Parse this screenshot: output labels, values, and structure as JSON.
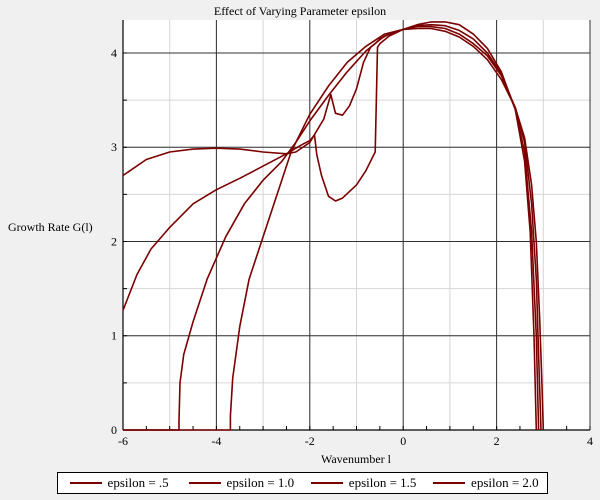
{
  "chart_data": {
    "type": "line",
    "title": "Effect of Varying Parameter epsilon",
    "xlabel": "Wavenumber l",
    "ylabel": "Growth Rate G(l)",
    "xlim": [
      -6,
      4
    ],
    "ylim": [
      0,
      4.35
    ],
    "xticks": [
      "-6",
      "-4",
      "-2",
      "0",
      "2",
      "4"
    ],
    "yticks": [
      "0",
      "1",
      "2",
      "3",
      "4"
    ],
    "grid": true,
    "legend_position": "bottom",
    "line_color": "#7b0000",
    "series": [
      {
        "name": "epsilon = .5",
        "points": [
          [
            -6,
            2.7
          ],
          [
            -5.5,
            2.87
          ],
          [
            -5,
            2.95
          ],
          [
            -4.5,
            2.98
          ],
          [
            -4,
            2.99
          ],
          [
            -3.5,
            2.98
          ],
          [
            -3,
            2.95
          ],
          [
            -2.5,
            2.93
          ],
          [
            -2.3,
            2.95
          ],
          [
            -2.0,
            3.05
          ],
          [
            -1.7,
            3.3
          ],
          [
            -1.55,
            3.56
          ],
          [
            -1.45,
            3.36
          ],
          [
            -1.3,
            3.34
          ],
          [
            -1.15,
            3.44
          ],
          [
            -1.0,
            3.62
          ],
          [
            -0.85,
            3.9
          ],
          [
            -0.7,
            4.06
          ],
          [
            -0.6,
            4.1
          ],
          [
            -0.5,
            4.15
          ],
          [
            -0.3,
            4.2
          ],
          [
            0,
            4.25
          ],
          [
            0.3,
            4.3
          ],
          [
            0.6,
            4.33
          ],
          [
            0.9,
            4.33
          ],
          [
            1.2,
            4.3
          ],
          [
            1.5,
            4.2
          ],
          [
            1.8,
            4.05
          ],
          [
            2.1,
            3.8
          ],
          [
            2.4,
            3.4
          ],
          [
            2.6,
            2.85
          ],
          [
            2.72,
            2.1
          ],
          [
            2.8,
            1.0
          ],
          [
            2.85,
            0
          ]
        ]
      },
      {
        "name": "epsilon = 1.0",
        "points": [
          [
            -6,
            1.27
          ],
          [
            -5.7,
            1.65
          ],
          [
            -5.4,
            1.92
          ],
          [
            -5.0,
            2.15
          ],
          [
            -4.5,
            2.4
          ],
          [
            -4.0,
            2.55
          ],
          [
            -3.5,
            2.67
          ],
          [
            -3.0,
            2.8
          ],
          [
            -2.5,
            2.93
          ],
          [
            -2.2,
            3.02
          ],
          [
            -2.0,
            3.07
          ],
          [
            -1.9,
            3.13
          ],
          [
            -1.85,
            2.92
          ],
          [
            -1.75,
            2.7
          ],
          [
            -1.6,
            2.48
          ],
          [
            -1.45,
            2.43
          ],
          [
            -1.3,
            2.46
          ],
          [
            -1.0,
            2.6
          ],
          [
            -0.8,
            2.75
          ],
          [
            -0.6,
            2.95
          ],
          [
            -0.55,
            4.06
          ],
          [
            -0.5,
            4.1
          ],
          [
            -0.3,
            4.18
          ],
          [
            0,
            4.25
          ],
          [
            0.3,
            4.29
          ],
          [
            0.6,
            4.3
          ],
          [
            0.9,
            4.29
          ],
          [
            1.2,
            4.24
          ],
          [
            1.5,
            4.15
          ],
          [
            1.8,
            4.0
          ],
          [
            2.1,
            3.78
          ],
          [
            2.4,
            3.4
          ],
          [
            2.6,
            2.95
          ],
          [
            2.75,
            2.1
          ],
          [
            2.85,
            1.0
          ],
          [
            2.9,
            0
          ]
        ]
      },
      {
        "name": "epsilon = 1.5",
        "points": [
          [
            -6,
            0
          ],
          [
            -4.8,
            0
          ],
          [
            -4.8,
            0.1
          ],
          [
            -4.78,
            0.5
          ],
          [
            -4.7,
            0.8
          ],
          [
            -4.5,
            1.15
          ],
          [
            -4.2,
            1.6
          ],
          [
            -3.8,
            2.05
          ],
          [
            -3.4,
            2.4
          ],
          [
            -3.0,
            2.65
          ],
          [
            -2.6,
            2.85
          ],
          [
            -2.3,
            3.05
          ],
          [
            -2.0,
            3.28
          ],
          [
            -1.6,
            3.55
          ],
          [
            -1.2,
            3.8
          ],
          [
            -0.8,
            4.02
          ],
          [
            -0.4,
            4.18
          ],
          [
            0,
            4.25
          ],
          [
            0.3,
            4.28
          ],
          [
            0.6,
            4.28
          ],
          [
            0.9,
            4.26
          ],
          [
            1.2,
            4.2
          ],
          [
            1.5,
            4.1
          ],
          [
            1.8,
            3.97
          ],
          [
            2.1,
            3.76
          ],
          [
            2.4,
            3.42
          ],
          [
            2.6,
            3.05
          ],
          [
            2.75,
            2.4
          ],
          [
            2.85,
            1.6
          ],
          [
            2.9,
            0.8
          ],
          [
            2.95,
            0
          ]
        ]
      },
      {
        "name": "epsilon = 2.0",
        "points": [
          [
            -6,
            0
          ],
          [
            -3.7,
            0
          ],
          [
            -3.7,
            0.15
          ],
          [
            -3.65,
            0.55
          ],
          [
            -3.5,
            1.1
          ],
          [
            -3.3,
            1.6
          ],
          [
            -3.0,
            2.05
          ],
          [
            -2.7,
            2.5
          ],
          [
            -2.4,
            2.95
          ],
          [
            -2.0,
            3.35
          ],
          [
            -1.6,
            3.65
          ],
          [
            -1.2,
            3.9
          ],
          [
            -0.8,
            4.07
          ],
          [
            -0.4,
            4.2
          ],
          [
            0,
            4.25
          ],
          [
            0.3,
            4.26
          ],
          [
            0.6,
            4.26
          ],
          [
            0.9,
            4.23
          ],
          [
            1.2,
            4.17
          ],
          [
            1.5,
            4.07
          ],
          [
            1.8,
            3.93
          ],
          [
            2.1,
            3.72
          ],
          [
            2.4,
            3.42
          ],
          [
            2.6,
            3.1
          ],
          [
            2.75,
            2.6
          ],
          [
            2.85,
            2.0
          ],
          [
            2.92,
            1.2
          ],
          [
            2.97,
            0.5
          ],
          [
            3.0,
            0
          ]
        ]
      }
    ]
  }
}
